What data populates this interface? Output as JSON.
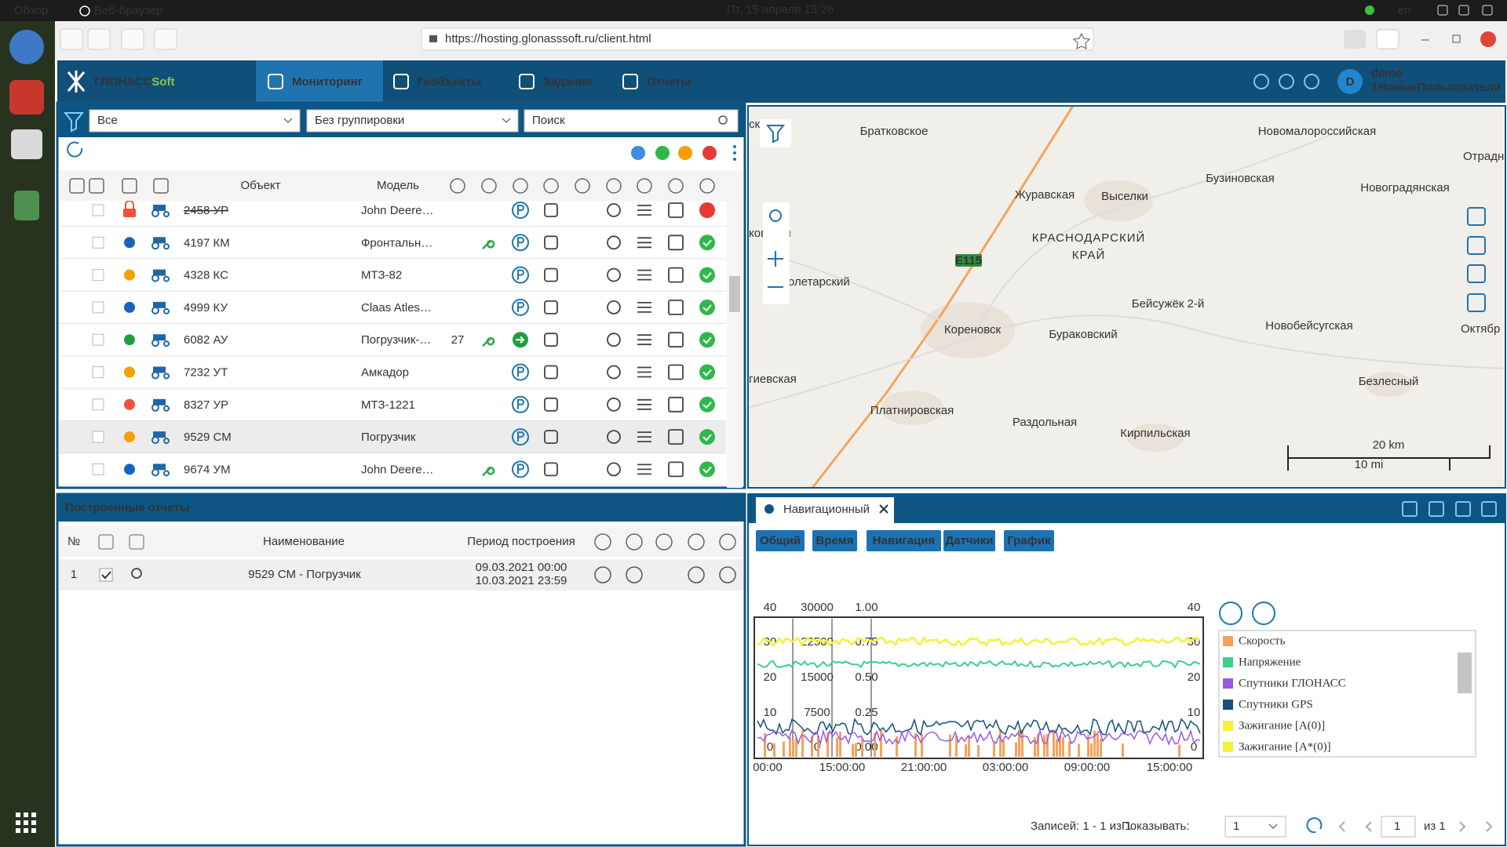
{
  "os_bar": {
    "overview": "Обзор",
    "app_name": "Веб-браузер",
    "datetime": "Пт, 15 апреля 15:26",
    "lang": "en"
  },
  "browser": {
    "url": "https://hosting.glonasssoft.ru/client.html"
  },
  "app": {
    "logo": {
      "main": "ГЛОНАСС",
      "accent": "Soft"
    },
    "nav": [
      "Мониторинг",
      "Геобъекты",
      "Задания",
      "Отчеты"
    ],
    "user": {
      "avatar": "D",
      "name": "demo",
      "group": "1НовыеПользователи"
    }
  },
  "objects": {
    "filter": "Все",
    "grouping": "Без группировки",
    "search_placeholder": "Поиск",
    "columns": {
      "object": "Объект",
      "model": "Модель"
    },
    "rows": [
      {
        "name": "2458 УР",
        "model": "John Deere…",
        "status_color": "#f0503c",
        "locked": true,
        "key": false
      },
      {
        "name": "4197 КМ",
        "model": "Фронтальн…",
        "status_color": "#1565c0",
        "key": true
      },
      {
        "name": "4328 КС",
        "model": "МТЗ-82",
        "status_color": "#f5a000",
        "key": false
      },
      {
        "name": "4999 КУ",
        "model": "Claas Atles…",
        "status_color": "#1565c0",
        "key": false
      },
      {
        "name": "6082 АУ",
        "model": "Погрузчик-…",
        "status_color": "#1e9e3e",
        "count": "27",
        "key": true,
        "moving": true
      },
      {
        "name": "7232 УТ",
        "model": "Амкадор",
        "status_color": "#f5a000",
        "key": false
      },
      {
        "name": "8327 УР",
        "model": "МТЗ-1221",
        "status_color": "#f0503c",
        "key": false
      },
      {
        "name": "9529 СМ",
        "model": "Погрузчик",
        "status_color": "#f5a000",
        "key": false,
        "selected": true
      },
      {
        "name": "9674 УМ",
        "model": "John Deere…",
        "status_color": "#1565c0",
        "key": true
      }
    ]
  },
  "map": {
    "labels": [
      "ска",
      "Братковское",
      "Новомалороссийская",
      "Отрадн",
      "Журавская",
      "Выселки",
      "Бузиновская",
      "Новоградянская",
      "КРАСНОДАРСКИЙ",
      "КРАЙ",
      "ковская",
      "олетарский",
      "Бейсужёк 2-й",
      "Кореновск",
      "Бураковский",
      "Новобейсугская",
      "Октябр",
      "гиевская",
      "Безлесный",
      "Платнировская",
      "Раздольная",
      "Кирпильская"
    ],
    "road_number": "E115",
    "scale": {
      "km": "20 km",
      "mi": "10 mi"
    }
  },
  "reports": {
    "title": "Построенные отчеты",
    "columns": {
      "number": "№",
      "name": "Наименование",
      "period": "Период построения"
    },
    "rows": [
      {
        "number": "1",
        "name": "9529 СМ - Погрузчик",
        "period_from": "09.03.2021 00:00",
        "period_to": "10.03.2021 23:59",
        "checked": true
      }
    ]
  },
  "report_view": {
    "tab": "Навигационный",
    "sections": [
      "Общий",
      "Время",
      "Навигация",
      "Датчики",
      "График"
    ],
    "chart": {
      "axis_speed": [
        "40",
        "30",
        "20",
        "10",
        "0"
      ],
      "axis_voltage": [
        "30000",
        "22500",
        "15000",
        "7500",
        "0"
      ],
      "axis_ignition": [
        "1.00",
        "0.75",
        "0.50",
        "0.25",
        "0.00"
      ],
      "axis_right": [
        "40",
        "30",
        "20",
        "10",
        "0"
      ],
      "time_labels": [
        "00:00",
        "15:00:00",
        "21:00:00",
        "03:00:00",
        "09:00:00",
        "15:00:00"
      ]
    },
    "legend": [
      {
        "name": "Скорость",
        "color": "#f7a25c"
      },
      {
        "name": "Напряжение",
        "color": "#3ccf8a"
      },
      {
        "name": "Спутники ГЛОНАСС",
        "color": "#9b59e6"
      },
      {
        "name": "Спутники GPS",
        "color": "#14507a"
      },
      {
        "name": "Зажигание [A(0)]",
        "color": "#f5f03a"
      },
      {
        "name": "Зажигание [A*(0)]",
        "color": "#f5f03a"
      }
    ],
    "pagination": {
      "records": "Записей: 1 - 1 из 1",
      "show_label": "Показывать:",
      "page_size": "1",
      "page": "1",
      "of_pages": "из 1"
    }
  }
}
